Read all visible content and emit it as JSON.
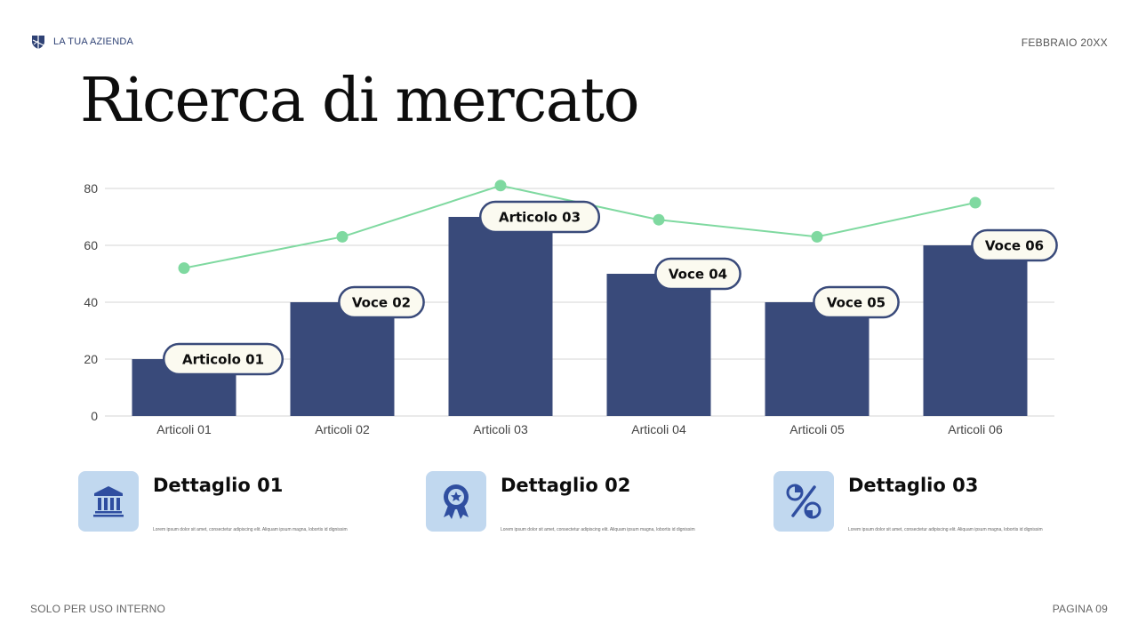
{
  "header": {
    "company": "LA TUA AZIENDA",
    "logo_icon": "shield-logo-icon",
    "date": "FEBBRAIO 20XX"
  },
  "title": "Ricerca di mercato",
  "chart_data": {
    "type": "bar",
    "categories": [
      "Articoli 01",
      "Articoli 02",
      "Articoli 03",
      "Articoli 04",
      "Articoli 05",
      "Articoli 06"
    ],
    "series": [
      {
        "type": "bar",
        "values": [
          20,
          40,
          70,
          50,
          40,
          60
        ],
        "color": "#394a7a",
        "data_labels": [
          "Articolo 01",
          "Voce 02",
          "Articolo 03",
          "Voce 04",
          "Voce 05",
          "Voce 06"
        ]
      },
      {
        "type": "line",
        "values": [
          52,
          63,
          81,
          69,
          63,
          75
        ],
        "color": "#7fd9a0"
      }
    ],
    "y_ticks": [
      0,
      20,
      40,
      60,
      80
    ],
    "ylim": [
      0,
      80
    ],
    "grid": true,
    "legend": "none"
  },
  "details": [
    {
      "title": "Dettaglio 01",
      "icon": "bank-icon",
      "text": "Lorem ipsum dolor sit amet, consectetur adipiscing elit. Aliquam ipsum magna, lobortis id dignissim"
    },
    {
      "title": "Dettaglio 02",
      "icon": "award-badge-icon",
      "text": "Lorem ipsum dolor sit amet, consectetur adipiscing elit. Aliquam ipsum magna, lobortis id dignissim"
    },
    {
      "title": "Dettaglio 03",
      "icon": "percent-chart-icon",
      "text": "Lorem ipsum dolor sit amet, consectetur adipiscing elit. Aliquam ipsum magna, lobortis id dignissim"
    }
  ],
  "footer": {
    "left": "SOLO PER USO INTERNO",
    "right": "PAGINA 09"
  },
  "colors": {
    "accent": "#394a7a",
    "line": "#7fd9a0",
    "icon_bg": "#c1d8ef",
    "chip_bg": "#fbfaf0"
  }
}
